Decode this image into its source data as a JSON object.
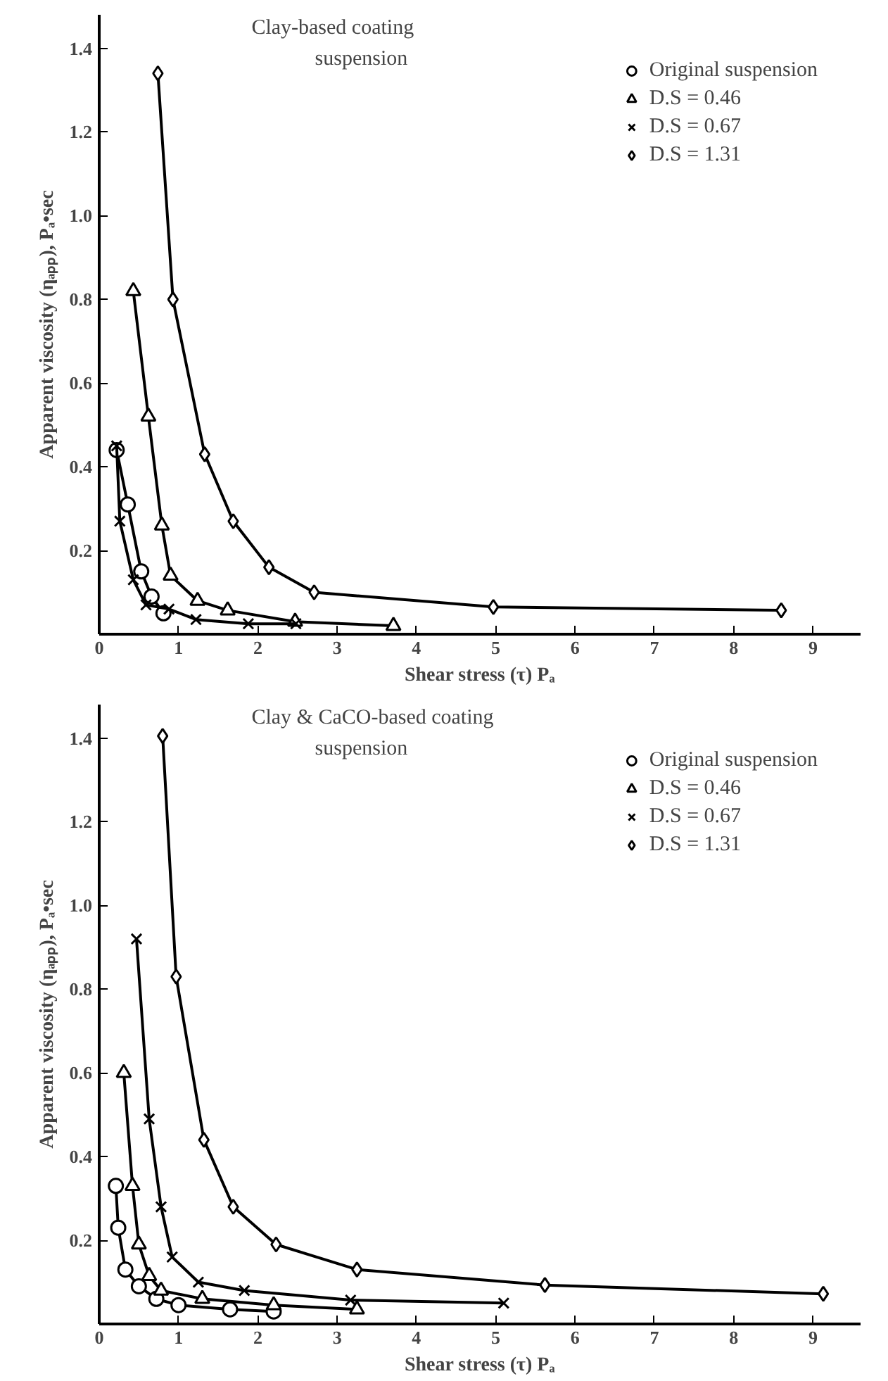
{
  "chart_data": [
    {
      "type": "line",
      "title": "Clay-based coating suspension",
      "xlabel": "Shear stress (τ) Pₐ",
      "ylabel": "Apparent viscosity (ηₐₚₚ), Pₐ•sec",
      "xlim": [
        0,
        9.6
      ],
      "ylim": [
        0,
        1.48
      ],
      "xticks": [
        0,
        1,
        2,
        3,
        4,
        5,
        6,
        7,
        8,
        9
      ],
      "yticks": [
        0.2,
        0.4,
        0.6,
        0.8,
        {
          "value": 1,
          "label": "1.0"
        },
        1.2,
        1.4
      ],
      "grid": false,
      "legend": "top right",
      "series": [
        {
          "name": "Original suspension",
          "color": "#000000",
          "marker": "circle",
          "x": [
            0.22,
            0.36,
            0.53,
            0.66,
            0.81
          ],
          "values": [
            0.44,
            0.31,
            0.15,
            0.09,
            0.05
          ]
        },
        {
          "name": "D.S = 0.46",
          "color": "#000000",
          "marker": "triangle",
          "x": [
            0.43,
            0.62,
            0.79,
            0.9,
            1.24,
            1.62,
            2.47,
            3.71
          ],
          "values": [
            0.82,
            0.52,
            0.26,
            0.14,
            0.08,
            0.057,
            0.03,
            0.02
          ]
        },
        {
          "name": "D.S = 0.67",
          "color": "#000000",
          "marker": "cross",
          "x": [
            0.22,
            0.26,
            0.43,
            0.59,
            0.88,
            1.22,
            1.88,
            2.48
          ],
          "values": [
            0.45,
            0.27,
            0.13,
            0.07,
            0.06,
            0.035,
            0.025,
            0.025
          ]
        },
        {
          "name": "D.S = 1.31",
          "color": "#000000",
          "marker": "diamond",
          "x": [
            0.74,
            0.93,
            1.33,
            1.69,
            2.14,
            2.71,
            4.97,
            8.6
          ],
          "values": [
            1.34,
            0.8,
            0.43,
            0.27,
            0.16,
            0.1,
            0.065,
            0.057
          ]
        }
      ]
    },
    {
      "type": "line",
      "title": "Clay & CaCO-based coating suspension",
      "xlabel": "Shear stress (τ) Pₐ",
      "ylabel": "Apparent viscosity (ηₐₚₚ), Pₐ•sec",
      "xlim": [
        0,
        9.6
      ],
      "ylim": [
        0,
        1.48
      ],
      "xticks": [
        0,
        1,
        2,
        3,
        4,
        5,
        6,
        7,
        8,
        9
      ],
      "yticks": [
        0.2,
        0.4,
        0.6,
        0.8,
        {
          "value": 1,
          "label": "1.0"
        },
        1.2,
        1.4
      ],
      "grid": false,
      "legend": "top right",
      "series": [
        {
          "name": "Original suspension",
          "color": "#000000",
          "marker": "circle",
          "x": [
            0.21,
            0.24,
            0.33,
            0.5,
            0.72,
            1.0,
            1.65,
            2.2
          ],
          "values": [
            0.33,
            0.23,
            0.13,
            0.09,
            0.06,
            0.045,
            0.035,
            0.03
          ]
        },
        {
          "name": "D.S = 0.46",
          "color": "#000000",
          "marker": "triangle",
          "x": [
            0.31,
            0.42,
            0.5,
            0.63,
            0.78,
            1.3,
            2.2,
            3.25
          ],
          "values": [
            0.6,
            0.33,
            0.19,
            0.115,
            0.08,
            0.06,
            0.045,
            0.035
          ]
        },
        {
          "name": "D.S = 0.67",
          "color": "#000000",
          "marker": "cross",
          "x": [
            0.47,
            0.63,
            0.78,
            0.92,
            1.25,
            1.83,
            3.17,
            5.1
          ],
          "values": [
            0.92,
            0.49,
            0.28,
            0.16,
            0.1,
            0.08,
            0.057,
            0.05
          ]
        },
        {
          "name": "D.S = 1.31",
          "color": "#000000",
          "marker": "diamond",
          "x": [
            0.8,
            0.97,
            1.32,
            1.69,
            2.23,
            3.25,
            5.62,
            9.13
          ],
          "values": [
            1.405,
            0.83,
            0.44,
            0.28,
            0.19,
            0.13,
            0.093,
            0.072
          ]
        }
      ]
    }
  ]
}
